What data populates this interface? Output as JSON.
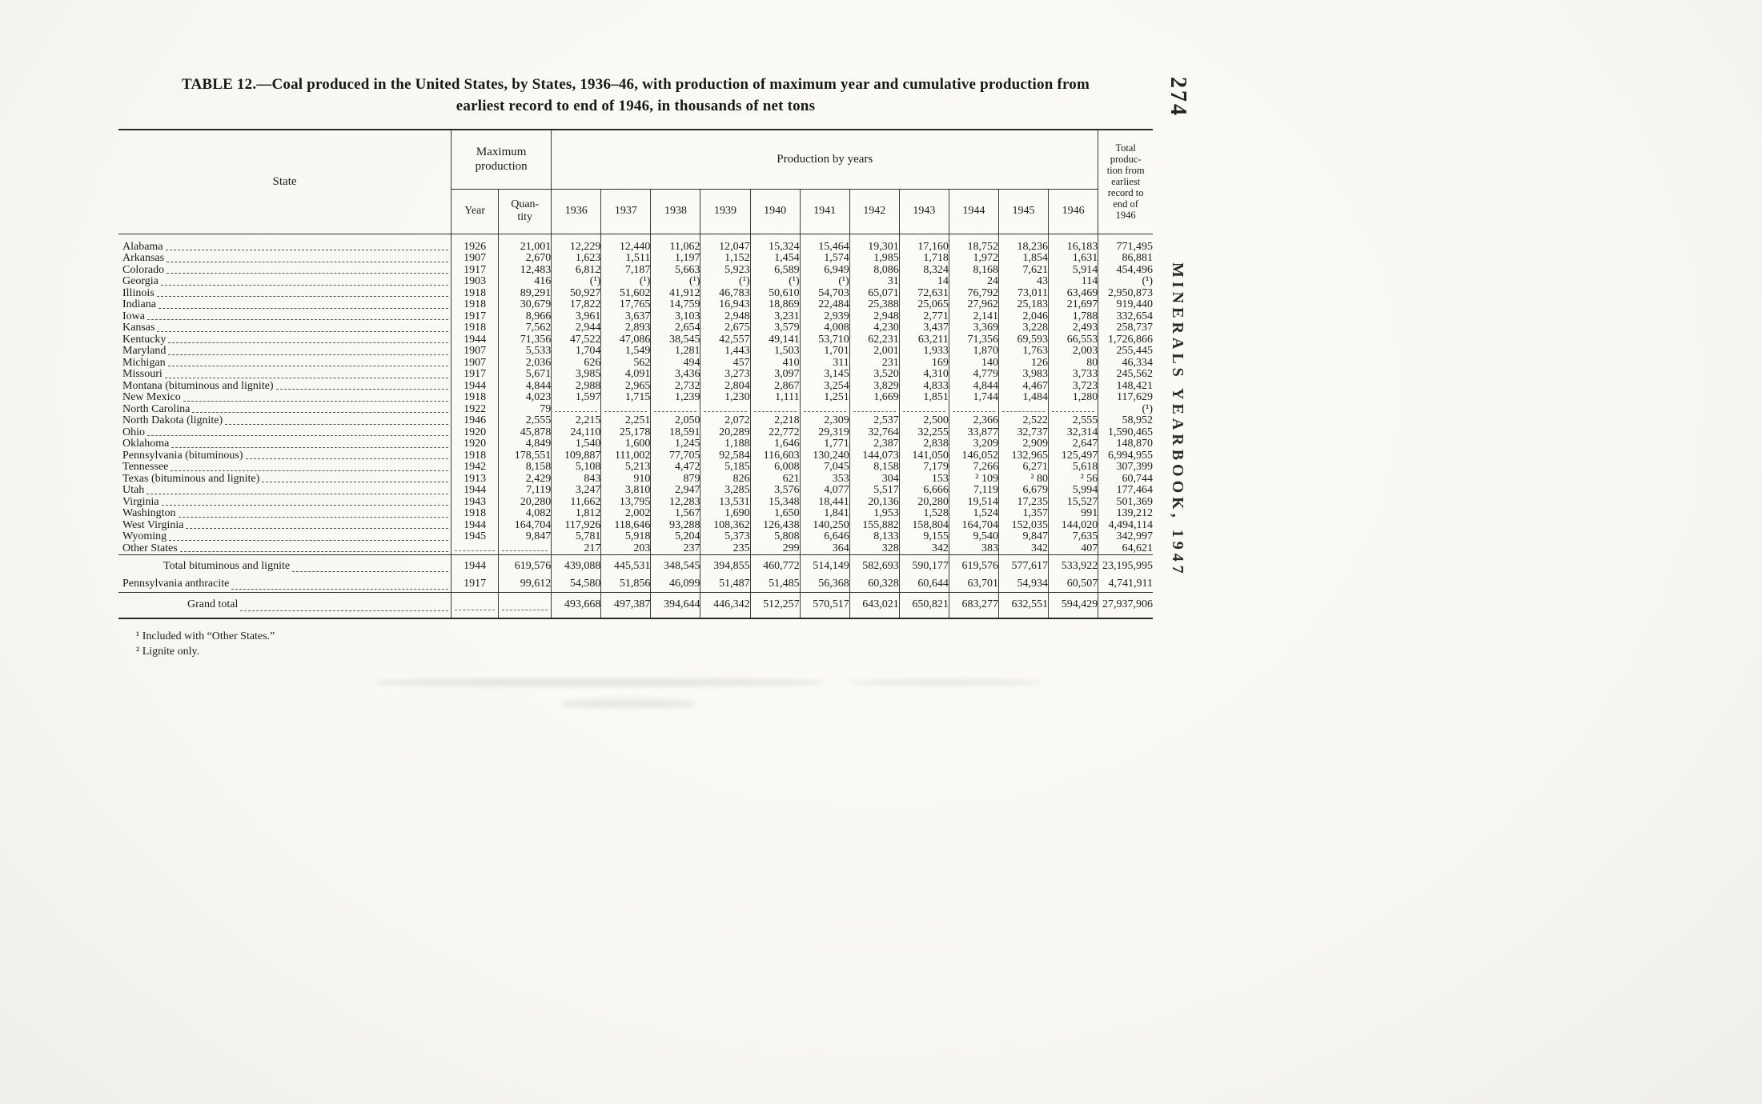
{
  "page": {
    "number": "274",
    "spine_text": "MINERALS YEARBOOK, 1947"
  },
  "title": {
    "line1": "TABLE 12.—Coal produced in the United States, by States, 1936–46, with production of maximum year and cumulative production from",
    "line2": "earliest record to end of 1946, in thousands of net tons"
  },
  "footnotes": [
    "¹ Included with “Other States.”",
    "² Lignite only."
  ],
  "table": {
    "col_state": "State",
    "col_max_production": "Maximum\nproduction",
    "col_year": "Year",
    "col_quantity": "Quan-\ntity",
    "col_production_by_years": "Production by years",
    "col_total": "Total\nproduc-\ntion from\nearliest\nrecord to\nend of\n1946",
    "years": [
      "1936",
      "1937",
      "1938",
      "1939",
      "1940",
      "1941",
      "1942",
      "1943",
      "1944",
      "1945",
      "1946"
    ],
    "rows": [
      {
        "state": "Alabama",
        "year": "1926",
        "qty": "21,001",
        "v": [
          "12,229",
          "12,440",
          "11,062",
          "12,047",
          "15,324",
          "15,464",
          "19,301",
          "17,160",
          "18,752",
          "18,236",
          "16,183"
        ],
        "total": "771,495"
      },
      {
        "state": "Arkansas",
        "year": "1907",
        "qty": "2,670",
        "v": [
          "1,623",
          "1,511",
          "1,197",
          "1,152",
          "1,454",
          "1,574",
          "1,985",
          "1,718",
          "1,972",
          "1,854",
          "1,631"
        ],
        "total": "86,881"
      },
      {
        "state": "Colorado",
        "year": "1917",
        "qty": "12,483",
        "v": [
          "6,812",
          "7,187",
          "5,663",
          "5,923",
          "6,589",
          "6,949",
          "8,086",
          "8,324",
          "8,168",
          "7,621",
          "5,914"
        ],
        "total": "454,496"
      },
      {
        "state": "Georgia",
        "year": "1903",
        "qty": "416",
        "v": [
          "(¹)",
          "(¹)",
          "(¹)",
          "(¹)",
          "(¹)",
          "(¹)",
          "31",
          "14",
          "24",
          "43",
          "114"
        ],
        "total": "(¹)"
      },
      {
        "state": "Illinois",
        "year": "1918",
        "qty": "89,291",
        "v": [
          "50,927",
          "51,602",
          "41,912",
          "46,783",
          "50,610",
          "54,703",
          "65,071",
          "72,631",
          "76,792",
          "73,011",
          "63,469"
        ],
        "total": "2,950,873"
      },
      {
        "state": "Indiana",
        "year": "1918",
        "qty": "30,679",
        "v": [
          "17,822",
          "17,765",
          "14,759",
          "16,943",
          "18,869",
          "22,484",
          "25,388",
          "25,065",
          "27,962",
          "25,183",
          "21,697"
        ],
        "total": "919,440"
      },
      {
        "state": "Iowa",
        "year": "1917",
        "qty": "8,966",
        "v": [
          "3,961",
          "3,637",
          "3,103",
          "2,948",
          "3,231",
          "2,939",
          "2,948",
          "2,771",
          "2,141",
          "2,046",
          "1,788"
        ],
        "total": "332,654"
      },
      {
        "state": "Kansas",
        "year": "1918",
        "qty": "7,562",
        "v": [
          "2,944",
          "2,893",
          "2,654",
          "2,675",
          "3,579",
          "4,008",
          "4,230",
          "3,437",
          "3,369",
          "3,228",
          "2,493"
        ],
        "total": "258,737"
      },
      {
        "state": "Kentucky",
        "year": "1944",
        "qty": "71,356",
        "v": [
          "47,522",
          "47,086",
          "38,545",
          "42,557",
          "49,141",
          "53,710",
          "62,231",
          "63,211",
          "71,356",
          "69,593",
          "66,553"
        ],
        "total": "1,726,866"
      },
      {
        "state": "Maryland",
        "year": "1907",
        "qty": "5,533",
        "v": [
          "1,704",
          "1,549",
          "1,281",
          "1,443",
          "1,503",
          "1,701",
          "2,001",
          "1,933",
          "1,870",
          "1,763",
          "2,003"
        ],
        "total": "255,445"
      },
      {
        "state": "Michigan",
        "year": "1907",
        "qty": "2,036",
        "v": [
          "626",
          "562",
          "494",
          "457",
          "410",
          "311",
          "231",
          "169",
          "140",
          "126",
          "80"
        ],
        "total": "46,334"
      },
      {
        "state": "Missouri",
        "year": "1917",
        "qty": "5,671",
        "v": [
          "3,985",
          "4,091",
          "3,436",
          "3,273",
          "3,097",
          "3,145",
          "3,520",
          "4,310",
          "4,779",
          "3,983",
          "3,733"
        ],
        "total": "245,562"
      },
      {
        "state": "Montana (bituminous and lignite)",
        "year": "1944",
        "qty": "4,844",
        "v": [
          "2,988",
          "2,965",
          "2,732",
          "2,804",
          "2,867",
          "3,254",
          "3,829",
          "4,833",
          "4,844",
          "4,467",
          "3,723"
        ],
        "total": "148,421"
      },
      {
        "state": "New Mexico",
        "year": "1918",
        "qty": "4,023",
        "v": [
          "1,597",
          "1,715",
          "1,239",
          "1,230",
          "1,111",
          "1,251",
          "1,669",
          "1,851",
          "1,744",
          "1,484",
          "1,280"
        ],
        "total": "117,629"
      },
      {
        "state": "North Carolina",
        "year": "1922",
        "qty": "79",
        "v": [
          "",
          "",
          "",
          "",
          "",
          "",
          "",
          "",
          "",
          "",
          ""
        ],
        "total": "(¹)"
      },
      {
        "state": "North Dakota (lignite)",
        "year": "1946",
        "qty": "2,555",
        "v": [
          "2,215",
          "2,251",
          "2,050",
          "2,072",
          "2,218",
          "2,309",
          "2,537",
          "2,500",
          "2,366",
          "2,522",
          "2,555"
        ],
        "total": "58,952"
      },
      {
        "state": "Ohio",
        "year": "1920",
        "qty": "45,878",
        "v": [
          "24,110",
          "25,178",
          "18,591",
          "20,289",
          "22,772",
          "29,319",
          "32,764",
          "32,255",
          "33,877",
          "32,737",
          "32,314"
        ],
        "total": "1,590,465"
      },
      {
        "state": "Oklahoma",
        "year": "1920",
        "qty": "4,849",
        "v": [
          "1,540",
          "1,600",
          "1,245",
          "1,188",
          "1,646",
          "1,771",
          "2,387",
          "2,838",
          "3,209",
          "2,909",
          "2,647"
        ],
        "total": "148,870"
      },
      {
        "state": "Pennsylvania (bituminous)",
        "year": "1918",
        "qty": "178,551",
        "v": [
          "109,887",
          "111,002",
          "77,705",
          "92,584",
          "116,603",
          "130,240",
          "144,073",
          "141,050",
          "146,052",
          "132,965",
          "125,497"
        ],
        "total": "6,994,955"
      },
      {
        "state": "Tennessee",
        "year": "1942",
        "qty": "8,158",
        "v": [
          "5,108",
          "5,213",
          "4,472",
          "5,185",
          "6,008",
          "7,045",
          "8,158",
          "7,179",
          "7,266",
          "6,271",
          "5,618"
        ],
        "total": "307,399"
      },
      {
        "state": "Texas (bituminous and lignite)",
        "year": "1913",
        "qty": "2,429",
        "v": [
          "843",
          "910",
          "879",
          "826",
          "621",
          "353",
          "304",
          "153",
          "² 109",
          "² 80",
          "² 56"
        ],
        "total": "60,744"
      },
      {
        "state": "Utah",
        "year": "1944",
        "qty": "7,119",
        "v": [
          "3,247",
          "3,810",
          "2,947",
          "3,285",
          "3,576",
          "4,077",
          "5,517",
          "6,666",
          "7,119",
          "6,679",
          "5,994"
        ],
        "total": "177,464"
      },
      {
        "state": "Virginia",
        "year": "1943",
        "qty": "20,280",
        "v": [
          "11,662",
          "13,795",
          "12,283",
          "13,531",
          "15,348",
          "18,441",
          "20,136",
          "20,280",
          "19,514",
          "17,235",
          "15,527"
        ],
        "total": "501,369"
      },
      {
        "state": "Washington",
        "year": "1918",
        "qty": "4,082",
        "v": [
          "1,812",
          "2,002",
          "1,567",
          "1,690",
          "1,650",
          "1,841",
          "1,953",
          "1,528",
          "1,524",
          "1,357",
          "991"
        ],
        "total": "139,212"
      },
      {
        "state": "West Virginia",
        "year": "1944",
        "qty": "164,704",
        "v": [
          "117,926",
          "118,646",
          "93,288",
          "108,362",
          "126,438",
          "140,250",
          "155,882",
          "158,804",
          "164,704",
          "152,035",
          "144,020"
        ],
        "total": "4,494,114"
      },
      {
        "state": "Wyoming",
        "year": "1945",
        "qty": "9,847",
        "v": [
          "5,781",
          "5,918",
          "5,204",
          "5,373",
          "5,808",
          "6,646",
          "8,133",
          "9,155",
          "9,540",
          "9,847",
          "7,635"
        ],
        "total": "342,997"
      },
      {
        "state": "Other States",
        "year": "",
        "qty": "",
        "v": [
          "217",
          "203",
          "237",
          "235",
          "299",
          "364",
          "328",
          "342",
          "383",
          "342",
          "407"
        ],
        "total": "64,621"
      }
    ],
    "summary_rows": [
      {
        "state": "Total bituminous and lignite",
        "indent": 1,
        "year": "1944",
        "qty": "619,576",
        "v": [
          "439,088",
          "445,531",
          "348,545",
          "394,855",
          "460,772",
          "514,149",
          "582,693",
          "590,177",
          "619,576",
          "577,617",
          "533,922"
        ],
        "total": "23,195,995"
      },
      {
        "state": "Pennsylvania anthracite",
        "indent": 0,
        "year": "1917",
        "qty": "99,612",
        "v": [
          "54,580",
          "51,856",
          "46,099",
          "51,487",
          "51,485",
          "56,368",
          "60,328",
          "60,644",
          "63,701",
          "54,934",
          "60,507"
        ],
        "total": "4,741,911"
      }
    ],
    "grand_total": {
      "state": "Grand total",
      "indent": 2,
      "year": "",
      "qty": "",
      "v": [
        "493,668",
        "497,387",
        "394,644",
        "446,342",
        "512,257",
        "570,517",
        "643,021",
        "650,821",
        "683,277",
        "632,551",
        "594,429"
      ],
      "total": "27,937,906"
    }
  }
}
